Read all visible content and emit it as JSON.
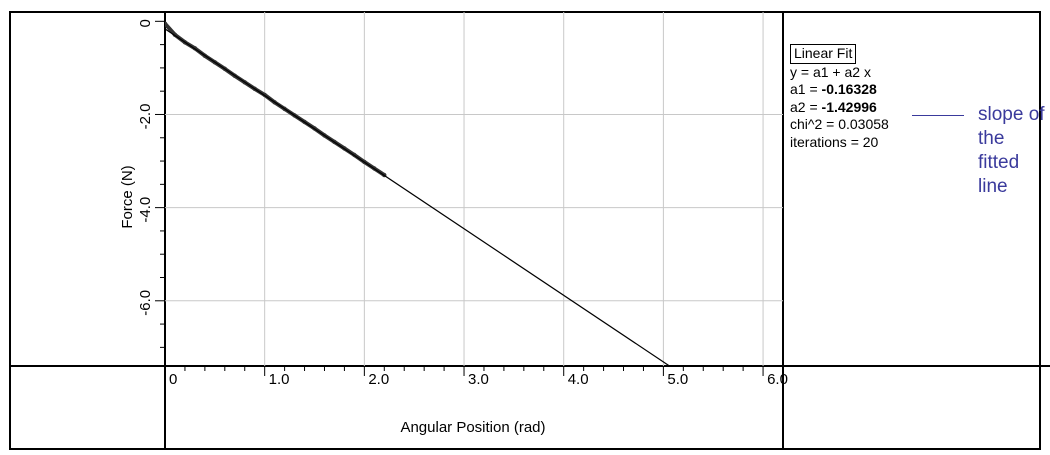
{
  "chart_data": {
    "type": "scatter",
    "xlabel": "Angular Position (rad)",
    "ylabel": "Force (N)",
    "xlim": [
      0,
      6.2
    ],
    "ylim": [
      -7.4,
      0.2
    ],
    "x_ticks": [
      0,
      1.0,
      2.0,
      3.0,
      4.0,
      5.0,
      6.0
    ],
    "x_tick_labels": [
      "0",
      "1.0",
      "2.0",
      "3.0",
      "4.0",
      "5.0",
      "6.0"
    ],
    "y_ticks": [
      0,
      -2.0,
      -4.0,
      -6.0
    ],
    "y_tick_labels": [
      "0",
      "-2.0",
      "-4.0",
      "-6.0"
    ],
    "grid": true,
    "series": [
      {
        "kind": "data",
        "x": [
          0.0,
          0.1,
          0.2,
          0.3,
          0.4,
          0.5,
          0.6,
          0.7,
          0.8,
          0.9,
          1.0,
          1.1,
          1.2,
          1.3,
          1.4,
          1.5,
          1.6,
          1.7,
          1.8,
          1.9,
          2.0,
          2.1,
          2.2
        ],
        "y": [
          -0.05,
          -0.29,
          -0.45,
          -0.58,
          -0.74,
          -0.88,
          -1.02,
          -1.17,
          -1.31,
          -1.45,
          -1.58,
          -1.74,
          -1.88,
          -2.02,
          -2.16,
          -2.3,
          -2.45,
          -2.59,
          -2.73,
          -2.87,
          -3.02,
          -3.16,
          -3.3
        ]
      },
      {
        "kind": "fit",
        "x": [
          0.0,
          5.25
        ],
        "y": [
          -0.16328,
          -7.67
        ]
      }
    ],
    "fit": {
      "title": "Linear Fit",
      "equation": "y = a1 + a2 x",
      "a1_label": "a1 = ",
      "a1": "-0.16328",
      "a2_label": "a2 = ",
      "a2": "-1.42996",
      "chi2": "chi^2 = 0.03058",
      "iterations": "iterations = 20"
    },
    "annotation": "slope of the fitted line",
    "colors": {
      "data": "#333333",
      "fit": "#000000",
      "grid": "#c8c8c8",
      "annotation": "#3a3a9c"
    }
  }
}
